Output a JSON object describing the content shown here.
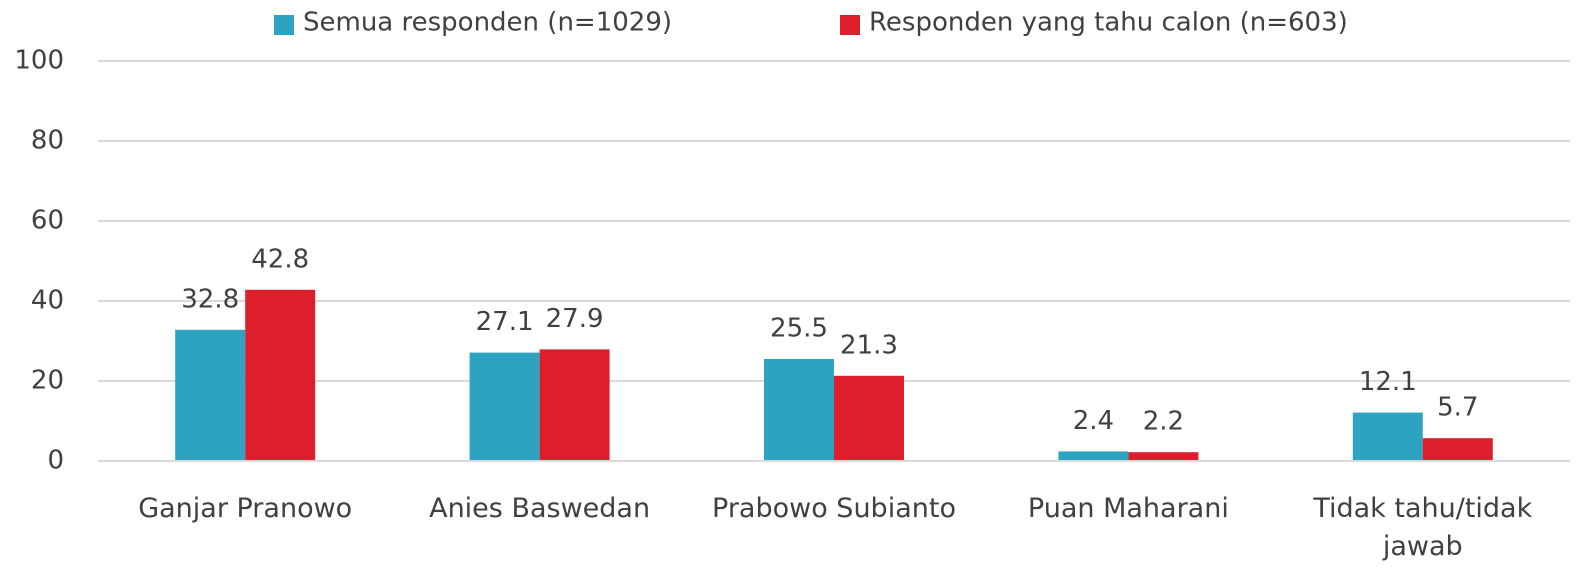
{
  "chart_data": {
    "type": "bar",
    "categories": [
      "Ganjar Pranowo",
      "Anies Baswedan",
      "Prabowo Subianto",
      "Puan Maharani",
      "Tidak tahu/tidak jawab"
    ],
    "series": [
      {
        "name": "Semua responden (n=1029)",
        "color": "#2ca3c0",
        "values": [
          32.8,
          27.1,
          25.5,
          2.4,
          12.1
        ]
      },
      {
        "name": "Responden yang tahu calon (n=603)",
        "color": "#dc1f2a",
        "values": [
          42.8,
          27.9,
          21.3,
          2.2,
          5.7
        ]
      }
    ],
    "ylim": [
      0,
      100
    ],
    "yticks": [
      0,
      20,
      40,
      60,
      80,
      100
    ],
    "grid": true,
    "legend": "top"
  }
}
